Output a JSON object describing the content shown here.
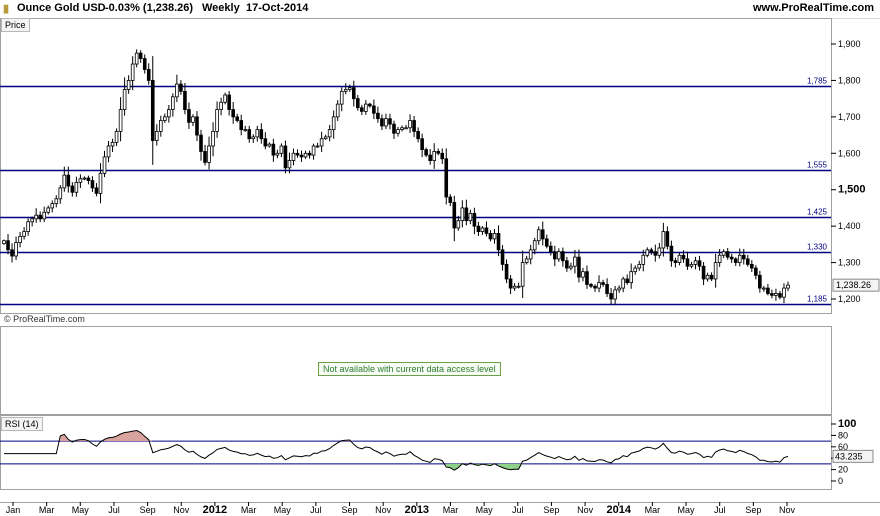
{
  "header": {
    "instrument": "Ounce Gold USD",
    "change": "-0.03% (1,238.26)",
    "period": "Weekly",
    "date": "17-Oct-2014",
    "site": "www.ProRealTime.com"
  },
  "panels": {
    "price_label": "Price",
    "rsi_label": "RSI (14)",
    "notice": "Not available with current data access level",
    "watermark": "© ProRealTime.com"
  },
  "colors": {
    "level_line": "#000080",
    "candle": "#000000",
    "rsi_line": "#000000",
    "rsi_overbought_fill": "#d9a3a0",
    "rsi_oversold_fill": "#8fd08a",
    "notice_text": "#2e7d32"
  },
  "chart_data": [
    {
      "type": "candlestick",
      "title": "Price",
      "ylim": [
        1160,
        1930
      ],
      "price_axis_ticks": [
        "1,200",
        "1,300",
        "1,400",
        "1,500",
        "1,600",
        "1,700",
        "1,800",
        "1,900"
      ],
      "bold_tick": "1,500",
      "current_value_label": "1,238.26",
      "horizontal_levels": [
        {
          "value": 1785,
          "label": "1,785"
        },
        {
          "value": 1555,
          "label": "1,555"
        },
        {
          "value": 1425,
          "label": "1,425"
        },
        {
          "value": 1330,
          "label": "1,330"
        },
        {
          "value": 1185,
          "label": "1,185"
        }
      ],
      "x_axis_labels": [
        {
          "label": "Jan",
          "bold": false
        },
        {
          "label": "Mar",
          "bold": false
        },
        {
          "label": "May",
          "bold": false
        },
        {
          "label": "Jul",
          "bold": false
        },
        {
          "label": "Sep",
          "bold": false
        },
        {
          "label": "Nov",
          "bold": false
        },
        {
          "label": "2012",
          "bold": true
        },
        {
          "label": "Mar",
          "bold": false
        },
        {
          "label": "May",
          "bold": false
        },
        {
          "label": "Jul",
          "bold": false
        },
        {
          "label": "Sep",
          "bold": false
        },
        {
          "label": "Nov",
          "bold": false
        },
        {
          "label": "2013",
          "bold": true
        },
        {
          "label": "Mar",
          "bold": false
        },
        {
          "label": "May",
          "bold": false
        },
        {
          "label": "Jul",
          "bold": false
        },
        {
          "label": "Sep",
          "bold": false
        },
        {
          "label": "Nov",
          "bold": false
        },
        {
          "label": "2014",
          "bold": true
        },
        {
          "label": "Mar",
          "bold": false
        },
        {
          "label": "May",
          "bold": false
        },
        {
          "label": "Jul",
          "bold": false
        },
        {
          "label": "Sep",
          "bold": false
        },
        {
          "label": "Nov",
          "bold": false
        }
      ],
      "weekly_close": [
        1360,
        1335,
        1318,
        1355,
        1372,
        1385,
        1412,
        1420,
        1430,
        1420,
        1438,
        1450,
        1462,
        1475,
        1505,
        1540,
        1510,
        1493,
        1520,
        1530,
        1532,
        1525,
        1505,
        1490,
        1545,
        1590,
        1620,
        1630,
        1660,
        1720,
        1775,
        1800,
        1845,
        1875,
        1860,
        1830,
        1800,
        1635,
        1660,
        1690,
        1700,
        1720,
        1755,
        1790,
        1770,
        1720,
        1685,
        1700,
        1650,
        1605,
        1575,
        1620,
        1660,
        1720,
        1740,
        1760,
        1720,
        1700,
        1690,
        1665,
        1665,
        1640,
        1645,
        1665,
        1640,
        1620,
        1625,
        1595,
        1600,
        1620,
        1560,
        1580,
        1600,
        1595,
        1590,
        1600,
        1595,
        1620,
        1620,
        1640,
        1645,
        1665,
        1700,
        1735,
        1770,
        1775,
        1780,
        1750,
        1725,
        1715,
        1735,
        1730,
        1710,
        1695,
        1675,
        1695,
        1680,
        1655,
        1665,
        1670,
        1670,
        1690,
        1660,
        1640,
        1610,
        1595,
        1580,
        1605,
        1600,
        1585,
        1480,
        1465,
        1395,
        1415,
        1450,
        1415,
        1435,
        1400,
        1385,
        1395,
        1380,
        1365,
        1380,
        1335,
        1295,
        1255,
        1230,
        1235,
        1235,
        1300,
        1310,
        1335,
        1360,
        1390,
        1365,
        1345,
        1330,
        1310,
        1330,
        1305,
        1285,
        1290,
        1315,
        1260,
        1275,
        1240,
        1235,
        1230,
        1245,
        1240,
        1215,
        1200,
        1225,
        1230,
        1255,
        1245,
        1275,
        1285,
        1295,
        1320,
        1335,
        1330,
        1320,
        1340,
        1385,
        1345,
        1305,
        1300,
        1320,
        1310,
        1290,
        1295,
        1305,
        1290,
        1255,
        1265,
        1255,
        1300,
        1320,
        1330,
        1315,
        1310,
        1300,
        1320,
        1310,
        1295,
        1285,
        1265,
        1230,
        1230,
        1215,
        1210,
        1215,
        1205,
        1230,
        1238
      ]
    },
    {
      "type": "line",
      "title": "RSI (14)",
      "ylim": [
        0,
        100
      ],
      "y_axis_ticks": [
        0,
        20,
        40,
        60,
        80,
        100
      ],
      "reference_lines": [
        70,
        30
      ],
      "current_value_label": "43.235"
    }
  ]
}
